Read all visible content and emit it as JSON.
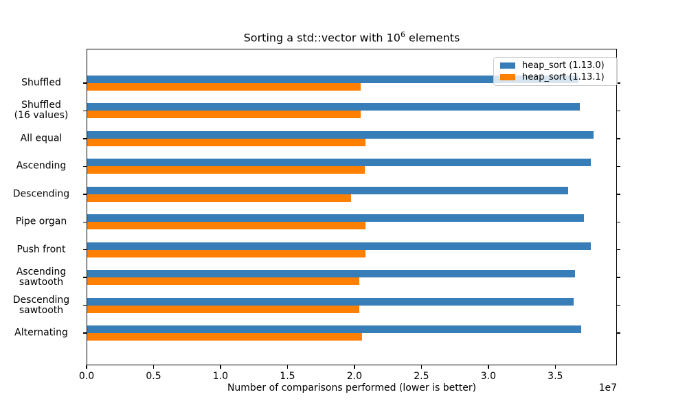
{
  "title": {
    "prefix": "Sorting a std::vector with 10",
    "superscript": "6",
    "suffix": " elements"
  },
  "chart_data": {
    "type": "bar",
    "orientation": "horizontal",
    "title": "Sorting a std::vector with 10^6 elements",
    "xlabel": "Number of comparisons performed (lower is better)",
    "x_scale_offset_label": "1e7",
    "xlim": [
      0,
      39600000
    ],
    "x_ticks": [
      0,
      5000000,
      10000000,
      15000000,
      20000000,
      25000000,
      30000000,
      35000000
    ],
    "x_tick_labels": [
      "0.0",
      "0.5",
      "1.0",
      "1.5",
      "2.0",
      "2.5",
      "3.0",
      "3.5"
    ],
    "grid": false,
    "legend_position": "upper right",
    "categories": [
      "Shuffled",
      "Shuffled\n(16 values)",
      "All equal",
      "Ascending",
      "Descending",
      "Pipe organ",
      "Push front",
      "Ascending\nsawtooth",
      "Descending\nsawtooth",
      "Alternating"
    ],
    "series": [
      {
        "name": "heap_sort (1.13.0)",
        "color": "#377eb8",
        "values": [
          36700000,
          36800000,
          37800000,
          37600000,
          35900000,
          37100000,
          37600000,
          36400000,
          36300000,
          36900000
        ]
      },
      {
        "name": "heap_sort (1.13.1)",
        "color": "#ff7f00",
        "values": [
          20400000,
          20400000,
          20800000,
          20700000,
          19700000,
          20800000,
          20800000,
          20300000,
          20300000,
          20500000
        ]
      }
    ]
  },
  "colors": {
    "background": "#ffffff",
    "text": "#000000",
    "spine": "#000000",
    "legend_border": "#cccccc"
  }
}
